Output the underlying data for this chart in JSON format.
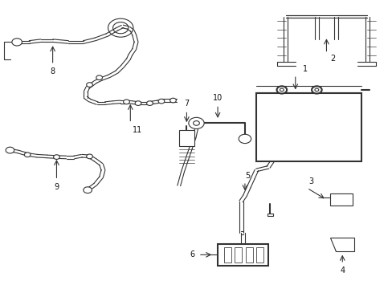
{
  "bg_color": "#ffffff",
  "line_color": "#333333",
  "text_color": "#111111",
  "lw": 1.5,
  "lw_thin": 0.8
}
